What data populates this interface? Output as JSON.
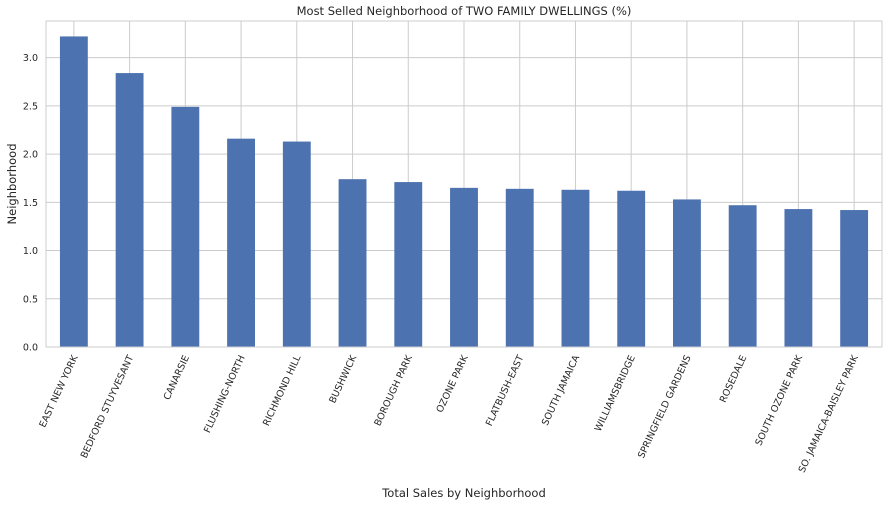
{
  "chart_data": {
    "type": "bar",
    "title": "Most Selled Neighborhood of TWO FAMILY DWELLINGS (%)",
    "xlabel": "Total Sales by Neighborhood",
    "ylabel": "Neighborhood",
    "categories": [
      "EAST NEW YORK",
      "BEDFORD STUYVESANT",
      "CANARSIE",
      "FLUSHING-NORTH",
      "RICHMOND HILL",
      "BUSHWICK",
      "BOROUGH PARK",
      "OZONE PARK",
      "FLATBUSH-EAST",
      "SOUTH JAMAICA",
      "WILLIAMSBRIDGE",
      "SPRINGFIELD GARDENS",
      "ROSEDALE",
      "SOUTH OZONE PARK",
      "SO. JAMAICA-BAISLEY PARK"
    ],
    "values": [
      3.22,
      2.84,
      2.49,
      2.16,
      2.13,
      1.74,
      1.71,
      1.65,
      1.64,
      1.63,
      1.62,
      1.53,
      1.47,
      1.43,
      1.42
    ],
    "ylim": [
      0,
      3.38
    ],
    "yticks": [
      "0.0",
      "0.5",
      "1.0",
      "1.5",
      "2.0",
      "2.5",
      "3.0"
    ],
    "grid": true,
    "bar_color": "#4c72b0"
  }
}
